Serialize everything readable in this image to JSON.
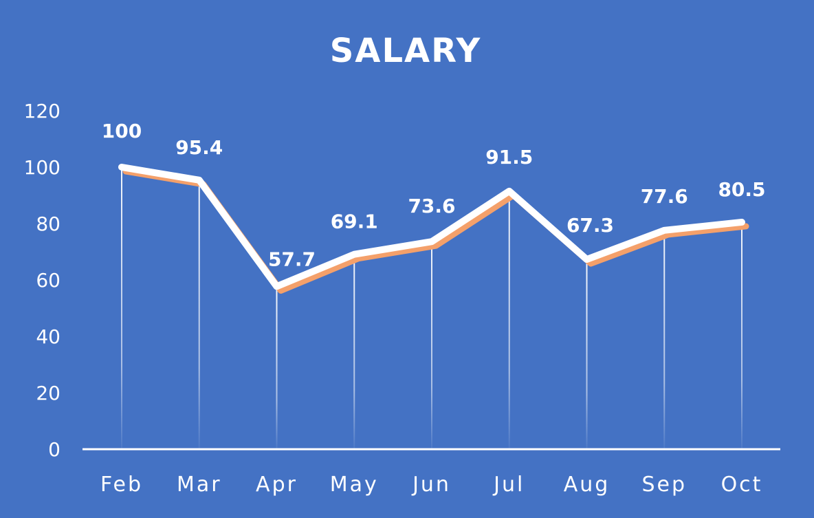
{
  "chart_data": {
    "type": "line",
    "title": "SALARY",
    "xlabel": "",
    "ylabel": "",
    "categories": [
      "Feb",
      "Mar",
      "Apr",
      "May",
      "Jun",
      "Jul",
      "Aug",
      "Sep",
      "Oct"
    ],
    "series": [
      {
        "values": [
          100,
          95.4,
          57.7,
          69.1,
          73.6,
          91.5,
          67.3,
          77.6,
          80.5
        ],
        "color": "#FFFFFF",
        "shadow_color": "#F4A06A"
      }
    ],
    "data_labels": [
      "100",
      "95.4",
      "57.7",
      "69.1",
      "73.6",
      "91.5",
      "67.3",
      "77.6",
      "80.5"
    ],
    "ylim": [
      0,
      120
    ],
    "yticks": [
      "0",
      "20",
      "40",
      "60",
      "80",
      "100",
      "120"
    ],
    "grid": false,
    "drop_lines": true,
    "legend": "none",
    "background_color": "#4472C4"
  }
}
